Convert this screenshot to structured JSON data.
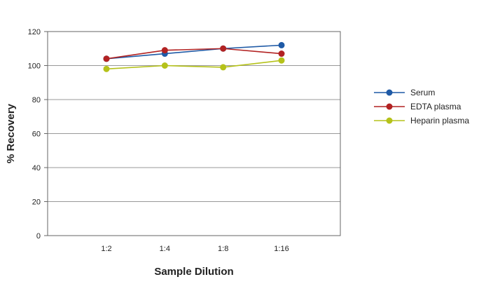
{
  "chart_data": {
    "type": "line",
    "title": "",
    "xlabel": "Sample Dilution",
    "ylabel": "% Recovery",
    "categories": [
      "1:2",
      "1:4",
      "1:8",
      "1:16"
    ],
    "ylim": [
      0,
      120
    ],
    "yticks": [
      0,
      20,
      40,
      60,
      80,
      100,
      120
    ],
    "grid": true,
    "legend_position": "right",
    "series": [
      {
        "name": "Serum",
        "color": "#1f5aa6",
        "values": [
          104,
          107,
          110,
          112
        ]
      },
      {
        "name": "EDTA plasma",
        "color": "#b22222",
        "values": [
          104,
          109,
          110,
          107
        ]
      },
      {
        "name": "Heparin plasma",
        "color": "#b5c21a",
        "values": [
          98,
          100,
          99,
          103
        ]
      }
    ]
  }
}
